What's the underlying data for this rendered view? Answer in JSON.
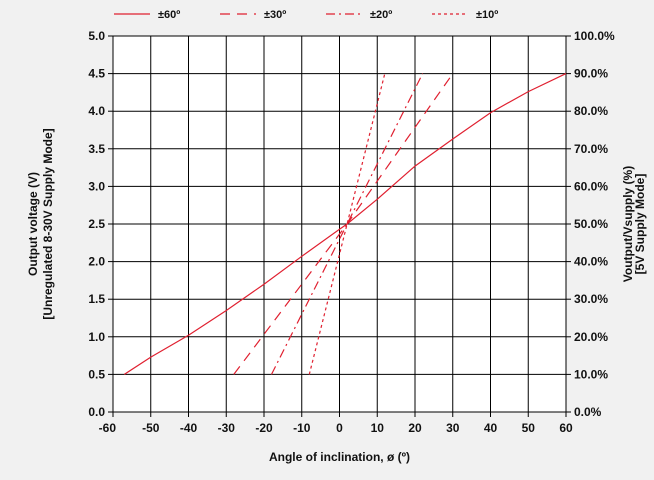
{
  "chart_data": {
    "type": "line",
    "xlabel": "Angle of inclination, ø (º)",
    "ylabel_left": [
      "Output voltage (V)",
      "[Unregulated 8-30V Supply Mode]"
    ],
    "ylabel_right": [
      "Voutput/Vsupply (%)",
      "[5V Supply Mode]"
    ],
    "xlim": [
      -60,
      60
    ],
    "ylim": [
      0,
      5
    ],
    "x_ticks": [
      "-60",
      "-50",
      "-40",
      "-30",
      "-20",
      "-10",
      "0",
      "10",
      "20",
      "30",
      "40",
      "50",
      "60"
    ],
    "y_ticks_left": [
      "0.0",
      "0.5",
      "1.0",
      "1.5",
      "2.0",
      "2.5",
      "3.0",
      "3.5",
      "4.0",
      "4.5",
      "5.0"
    ],
    "y_ticks_right": [
      "0.0%",
      "10.0%",
      "20.0%",
      "30.0%",
      "40.0%",
      "50.0%",
      "60.0%",
      "70.0%",
      "80.0%",
      "90.0%",
      "100.0%"
    ],
    "grid": true,
    "legend_position": "top",
    "series_color": "#e02030",
    "series": [
      {
        "name": "±60º",
        "dash": "solid",
        "points": [
          [
            -57,
            0.5
          ],
          [
            -50,
            0.73
          ],
          [
            -40,
            1.02
          ],
          [
            -30,
            1.35
          ],
          [
            -20,
            1.7
          ],
          [
            -10,
            2.07
          ],
          [
            0,
            2.43
          ],
          [
            2,
            2.5
          ],
          [
            10,
            2.83
          ],
          [
            20,
            3.27
          ],
          [
            30,
            3.63
          ],
          [
            40,
            3.98
          ],
          [
            50,
            4.26
          ],
          [
            60,
            4.5
          ]
        ]
      },
      {
        "name": "±30º",
        "dash": "dashed",
        "points": [
          [
            -28,
            0.5
          ],
          [
            2,
            2.5
          ],
          [
            30,
            4.5
          ]
        ]
      },
      {
        "name": "±20º",
        "dash": "dashdot",
        "points": [
          [
            -18,
            0.5
          ],
          [
            2,
            2.5
          ],
          [
            22,
            4.5
          ]
        ]
      },
      {
        "name": "±10º",
        "dash": "dotted",
        "points": [
          [
            -8,
            0.5
          ],
          [
            2,
            2.5
          ],
          [
            12,
            4.5
          ]
        ]
      }
    ]
  }
}
